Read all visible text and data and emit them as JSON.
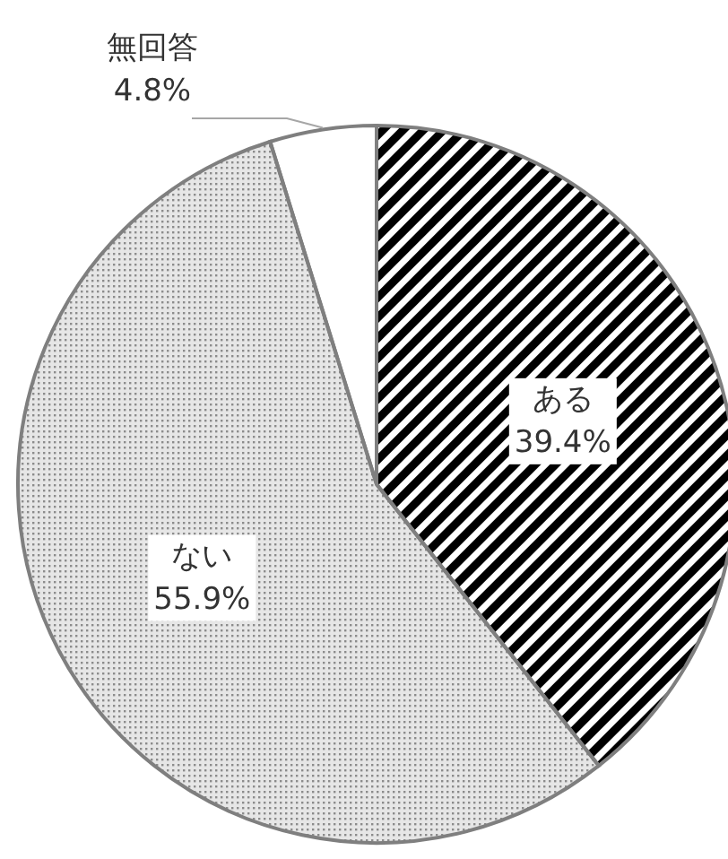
{
  "chart_data": {
    "type": "pie",
    "categories": [
      "ある",
      "ない",
      "無回答"
    ],
    "values": [
      39.4,
      55.9,
      4.8
    ],
    "value_labels": [
      "39.4%",
      "55.9%",
      "4.8%"
    ],
    "colors": [
      "#000000",
      "#8c8c8c",
      "#ffffff"
    ],
    "legend": false
  }
}
